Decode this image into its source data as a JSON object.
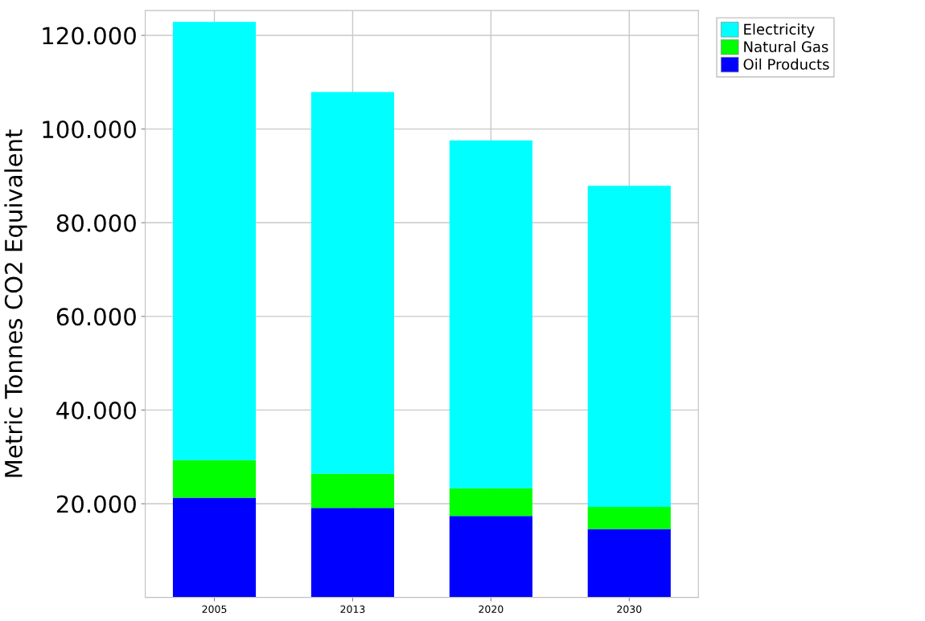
{
  "chart_data": {
    "type": "bar",
    "stacked": true,
    "ylabel": "Metric Tonnes CO2 Equivalent",
    "categories": [
      "2005",
      "2013",
      "2020",
      "2030"
    ],
    "series": [
      {
        "name": "Oil Products",
        "color": "#0000ff",
        "values": [
          21300,
          19100,
          17400,
          14600
        ]
      },
      {
        "name": "Natural Gas",
        "color": "#00ff00",
        "values": [
          8000,
          7300,
          5900,
          4700
        ]
      },
      {
        "name": "Electricity",
        "color": "#00ffff",
        "values": [
          93600,
          81500,
          74300,
          68600
        ]
      }
    ],
    "ylim": [
      0,
      125300
    ],
    "yticks": [
      {
        "value": 20000,
        "label": "20.000"
      },
      {
        "value": 40000,
        "label": "40.000"
      },
      {
        "value": 60000,
        "label": "60.000"
      },
      {
        "value": 80000,
        "label": "80.000"
      },
      {
        "value": 100000,
        "label": "100.000"
      },
      {
        "value": 120000,
        "label": "120.000"
      }
    ],
    "grid": true,
    "legend": "top right"
  }
}
